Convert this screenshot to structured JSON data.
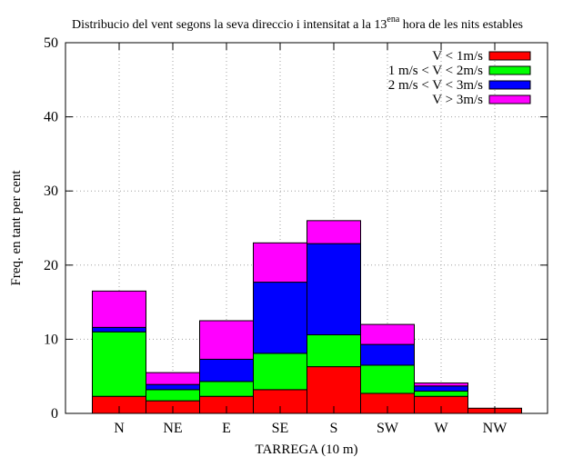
{
  "chart_data": {
    "type": "bar",
    "stacked": true,
    "title": "Distribucio del vent segons la seva direccio i intensitat a la 13",
    "title_superscript": "ena",
    "title_suffix": " hora de les nits estables",
    "xlabel": "TARREGA (10 m)",
    "ylabel": "Freq. en tant per cent",
    "ylim": [
      0,
      50
    ],
    "yticks": [
      0,
      10,
      20,
      30,
      40,
      50
    ],
    "grid": true,
    "legend_position": "top-right",
    "categories": [
      "N",
      "NE",
      "E",
      "SE",
      "S",
      "SW",
      "W",
      "NW"
    ],
    "series": [
      {
        "name": "V < 1m/s",
        "color": "#ff0000",
        "values": [
          2.3,
          1.7,
          2.3,
          3.2,
          6.3,
          2.7,
          2.3,
          0.7
        ]
      },
      {
        "name": "1 m/s < V < 2m/s",
        "color": "#00ff00",
        "values": [
          8.7,
          1.5,
          2.0,
          4.9,
          4.3,
          3.8,
          0.7,
          0.0
        ]
      },
      {
        "name": "2 m/s < V < 3m/s",
        "color": "#0000ff",
        "values": [
          0.6,
          0.7,
          3.0,
          9.6,
          12.3,
          2.8,
          0.7,
          0.0
        ]
      },
      {
        "name": "V > 3m/s",
        "color": "#ff00ff",
        "values": [
          4.9,
          1.6,
          5.2,
          5.3,
          3.1,
          2.7,
          0.4,
          0.0
        ]
      }
    ]
  }
}
